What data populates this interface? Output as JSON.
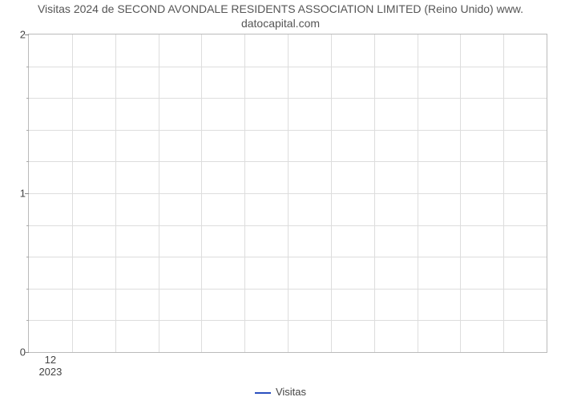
{
  "chart": {
    "type": "line",
    "title_line1": "Visitas 2024 de SECOND AVONDALE RESIDENTS ASSOCIATION LIMITED (Reino Unido) www.",
    "title_line2": "datocapital.com",
    "title_fontsize": 14,
    "title_color": "#555555",
    "background_color": "#ffffff",
    "border_color": "#bbbbbb",
    "grid_color": "#dddddd",
    "tick_color": "#444444",
    "ylim": [
      0,
      2
    ],
    "ymajor": [
      0,
      1,
      2
    ],
    "yminor_count": 4,
    "x_major_count": 12,
    "xtick_label": "12",
    "xtick_year": "2023",
    "legend_label": "Visitas",
    "legend_color": "#2a4fbf",
    "series": {
      "values": []
    }
  }
}
